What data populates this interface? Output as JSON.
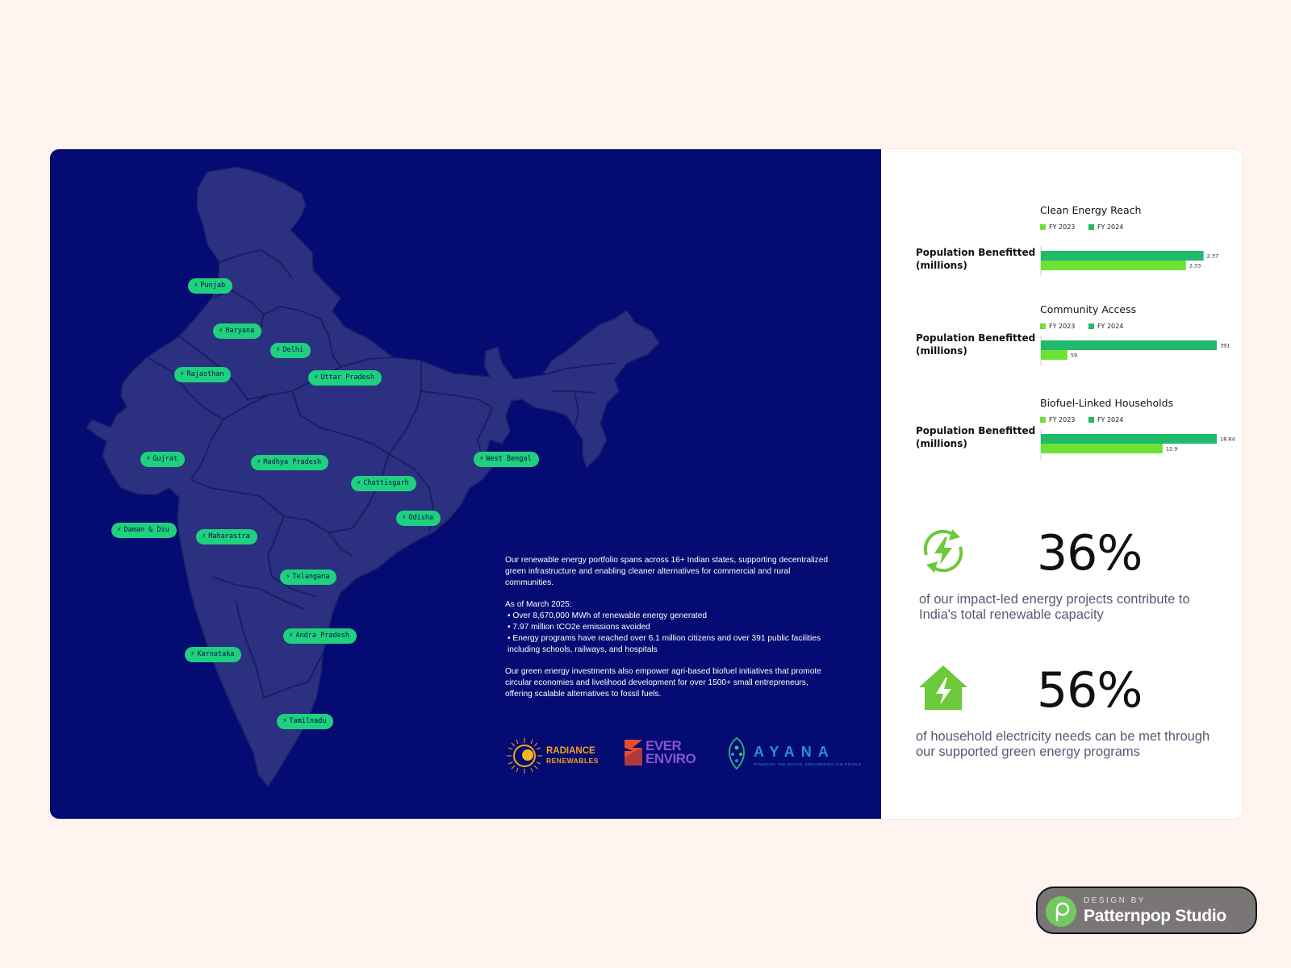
{
  "colors": {
    "page_bg": "#fff4ef",
    "panel_bg": "#040b72",
    "map_fill": "#2b3180",
    "map_borders": "#1b2068",
    "pill_green": "#1fd17e",
    "fy2023": "#6de234",
    "fy2024": "#1fba6a"
  },
  "map": {
    "state_labels": [
      "Punjab",
      "Haryana",
      "Delhi",
      "Rajasthan",
      "Uttar Pradesh",
      "Gujrat",
      "Madhya Pradesh",
      "West Bengal",
      "Chattisgarh",
      "Odisha",
      "Daman & Diu",
      "Maharastra",
      "Telangana",
      "Andra Pradesh",
      "Karnataka",
      "Tamilnadu"
    ],
    "pin_icon": "lightning-bolt-icon"
  },
  "description": {
    "intro": "Our renewable energy portfolio spans across 16+ Indian states, supporting decentralized green infrastructure and enabling cleaner alternatives for commercial and rural communities.",
    "as_of": "As of March 2025:",
    "bullets": [
      "Over 8,670,000 MWh of renewable energy generated",
      "7.97 million tCO2e emissions avoided",
      "Energy programs have reached over 6.1 million citizens and over 391 public facilities including schools, railways, and hospitals"
    ],
    "closing": "Our green energy investments also empower agri-based biofuel initiatives that promote circular economies and livelihood development for over 1500+ small entrepreneurs, offering scalable alternatives to fossil fuels."
  },
  "logos": {
    "radiance": {
      "line1": "RADIANCE",
      "line2": "RENEWABLES"
    },
    "ever": {
      "line1": "EVER",
      "line2": "ENVIRO"
    },
    "ayana": {
      "name": "AYANA",
      "tagline": "POWERING THE NATION, EMPOWERING THE PEOPLE"
    }
  },
  "chart_data": [
    {
      "type": "bar",
      "orientation": "horizontal",
      "title": "Clean Energy Reach",
      "ylabel": "Population Benefitted (millions)",
      "legend": [
        "FY 2023",
        "FY 2024"
      ],
      "legend_position": "top-left",
      "series": [
        {
          "name": "FY 2024",
          "values": [
            2.37
          ],
          "labels": [
            "2.37"
          ]
        },
        {
          "name": "FY 2023",
          "values": [
            2.33
          ],
          "labels": [
            "2.33"
          ]
        }
      ],
      "xlim": [
        2.0,
        2.4
      ]
    },
    {
      "type": "bar",
      "orientation": "horizontal",
      "title": "Community Access",
      "ylabel": "Population Benefitted (millions)",
      "legend": [
        "FY 2023",
        "FY 2024"
      ],
      "legend_position": "top-left",
      "series": [
        {
          "name": "FY 2024",
          "values": [
            391
          ],
          "labels": [
            "391"
          ]
        },
        {
          "name": "FY 2023",
          "values": [
            59
          ],
          "labels": [
            "59"
          ]
        }
      ],
      "xlim": [
        0,
        391
      ]
    },
    {
      "type": "bar",
      "orientation": "horizontal",
      "title": "Biofuel-Linked Households",
      "ylabel": "Population Benefitted (millions)",
      "legend": [
        "FY 2023",
        "FY 2024"
      ],
      "legend_position": "top-left",
      "series": [
        {
          "name": "FY 2024",
          "values": [
            18.64
          ],
          "labels": [
            "18.64"
          ]
        },
        {
          "name": "FY 2023",
          "values": [
            12.9
          ],
          "labels": [
            "12.9"
          ]
        }
      ],
      "xlim": [
        0,
        18.64
      ]
    }
  ],
  "stats": [
    {
      "value": "36%",
      "icon": "renewable-energy-cycle-icon",
      "text": "of our impact-led energy projects contribute to India's total renewable capacity"
    },
    {
      "value": "56%",
      "icon": "green-house-bolt-icon",
      "text": "of household electricity needs can be met through our supported green energy programs"
    }
  ],
  "badge": {
    "design_by": "DESIGN BY",
    "studio": "Patternpop Studio",
    "icon": "patternpop-logo-icon"
  }
}
